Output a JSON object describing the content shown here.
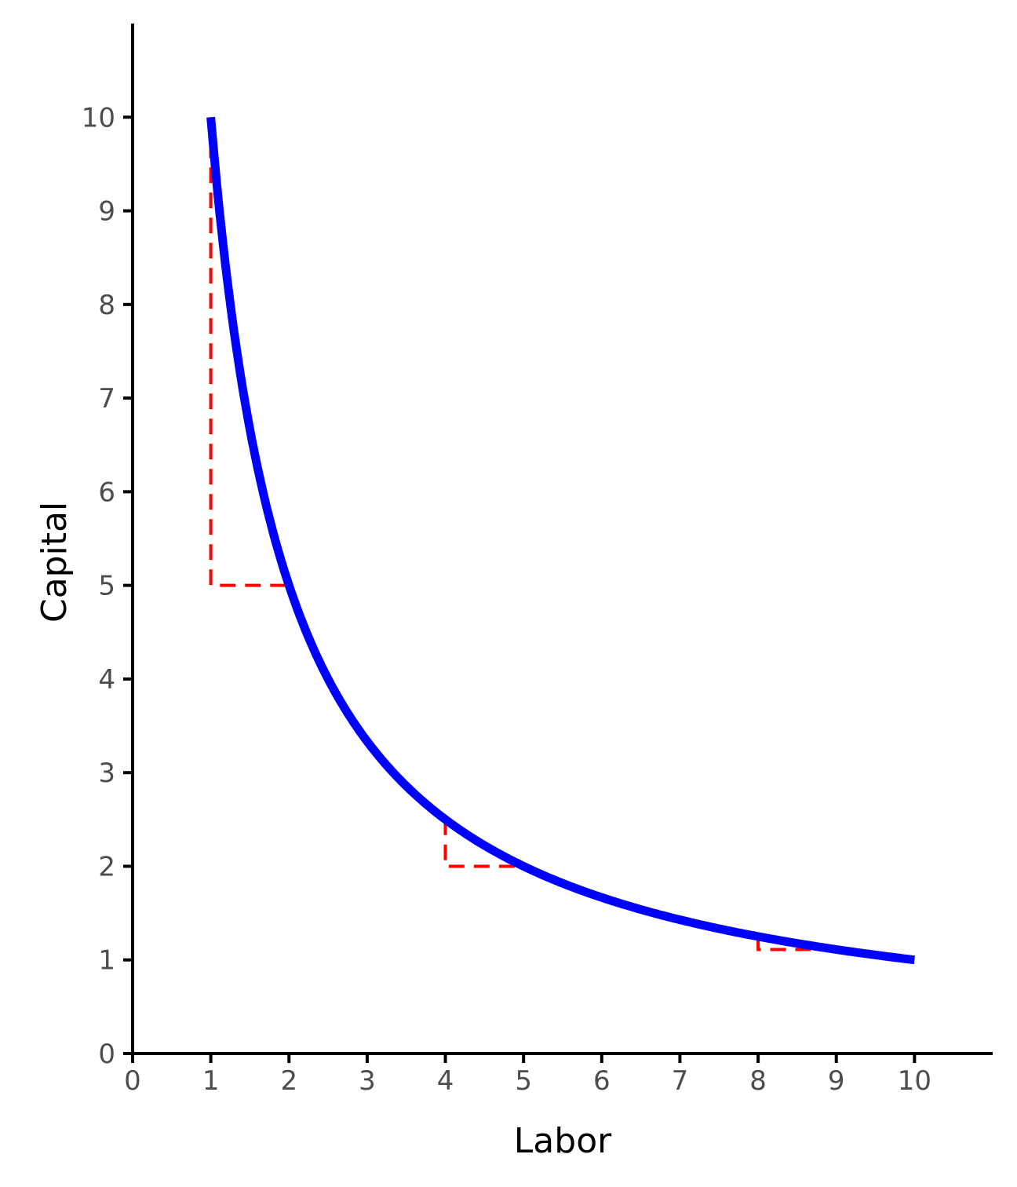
{
  "chart_data": {
    "type": "line",
    "xlabel": "Labor",
    "ylabel": "Capital",
    "xlim": [
      0,
      11
    ],
    "ylim": [
      0,
      11
    ],
    "x_ticks": [
      0,
      1,
      2,
      3,
      4,
      5,
      6,
      7,
      8,
      9,
      10
    ],
    "y_ticks": [
      0,
      1,
      2,
      3,
      4,
      5,
      6,
      7,
      8,
      9,
      10
    ],
    "grid": false,
    "legend": "none",
    "series": [
      {
        "function": "K = 10 / L",
        "color": "#0000ff",
        "x_range": [
          1,
          10
        ],
        "points": [
          [
            1,
            10
          ],
          [
            2,
            5
          ],
          [
            4,
            2.5
          ],
          [
            5,
            2
          ],
          [
            8,
            1.25
          ],
          [
            10,
            1
          ]
        ]
      }
    ],
    "annotations": [
      {
        "type": "dashed-step",
        "color": "#ff0000",
        "points": [
          [
            1,
            10
          ],
          [
            1,
            5
          ],
          [
            2,
            5
          ]
        ]
      },
      {
        "type": "dashed-step",
        "color": "#ff0000",
        "points": [
          [
            4,
            2.5
          ],
          [
            4,
            2
          ],
          [
            5,
            2
          ]
        ]
      },
      {
        "type": "dashed-step",
        "color": "#ff0000",
        "points": [
          [
            8,
            1.25
          ],
          [
            8,
            1.1111
          ],
          [
            9,
            1.1111
          ]
        ]
      }
    ]
  }
}
